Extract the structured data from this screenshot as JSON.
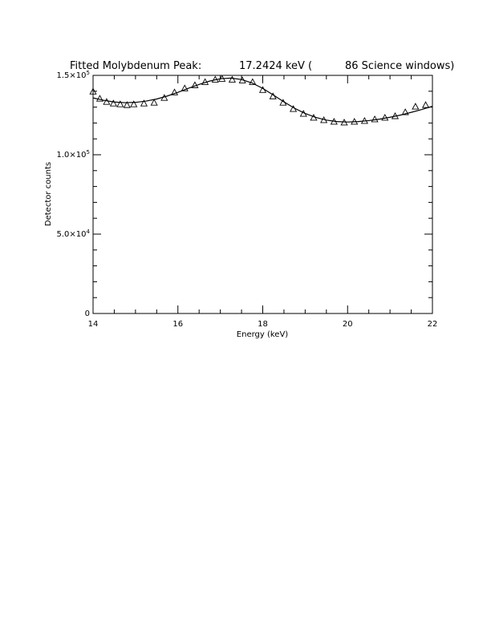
{
  "chart_data": {
    "type": "scatter",
    "title_parts": [
      "Fitted Molybdenum Peak:",
      "17.2424 keV (",
      "86 Science windows)"
    ],
    "xlabel": "Energy (keV)",
    "ylabel": "Detector counts",
    "xlim": [
      14,
      22
    ],
    "ylim": [
      0,
      150000
    ],
    "x_ticks": [
      14,
      16,
      18,
      20,
      22
    ],
    "x_tick_labels": [
      "14",
      "16",
      "18",
      "20",
      "22"
    ],
    "y_ticks": [
      {
        "value": 0,
        "mantissa": "0",
        "exponent": ""
      },
      {
        "value": 50000,
        "mantissa": "5.0×10",
        "exponent": "4"
      },
      {
        "value": 100000,
        "mantissa": "1.0×10",
        "exponent": "5"
      },
      {
        "value": 150000,
        "mantissa": "1.5×10",
        "exponent": "5"
      }
    ],
    "grid": false,
    "series": [
      {
        "marker": "triangle",
        "x": [
          14.0,
          14.16,
          14.32,
          14.48,
          14.64,
          14.8,
          14.96,
          15.2,
          15.44,
          15.68,
          15.92,
          16.16,
          16.4,
          16.64,
          16.88,
          17.04,
          17.28,
          17.52,
          17.76,
          18.0,
          18.24,
          18.48,
          18.72,
          18.96,
          19.2,
          19.44,
          19.68,
          19.92,
          20.16,
          20.4,
          20.64,
          20.88,
          21.12,
          21.36,
          21.6,
          21.84
        ],
        "y": [
          140000,
          135500,
          133500,
          132500,
          132000,
          131500,
          132000,
          132500,
          133000,
          136000,
          139500,
          142000,
          144000,
          146000,
          147500,
          148000,
          147500,
          147000,
          146000,
          141000,
          137000,
          133000,
          129000,
          126000,
          123500,
          122000,
          121000,
          120500,
          121000,
          121500,
          122500,
          123500,
          124500,
          127000,
          130500,
          131500
        ]
      },
      {
        "line": "solid",
        "x": [
          14.0,
          14.25,
          14.5,
          14.75,
          15.0,
          15.25,
          15.5,
          15.75,
          16.0,
          16.25,
          16.5,
          16.75,
          17.0,
          17.25,
          17.5,
          17.75,
          18.0,
          18.25,
          18.5,
          18.75,
          19.0,
          19.25,
          19.5,
          19.75,
          20.0,
          20.25,
          20.5,
          20.75,
          21.0,
          21.25,
          21.5,
          21.75,
          22.0
        ],
        "y": [
          135800,
          134300,
          133200,
          132800,
          133000,
          133800,
          135100,
          137000,
          139300,
          141900,
          144300,
          146400,
          147900,
          148300,
          147400,
          145200,
          141800,
          137600,
          133300,
          129300,
          126000,
          123500,
          121800,
          120900,
          120600,
          120900,
          121500,
          122400,
          123600,
          125000,
          126700,
          128500,
          130500
        ]
      }
    ]
  }
}
